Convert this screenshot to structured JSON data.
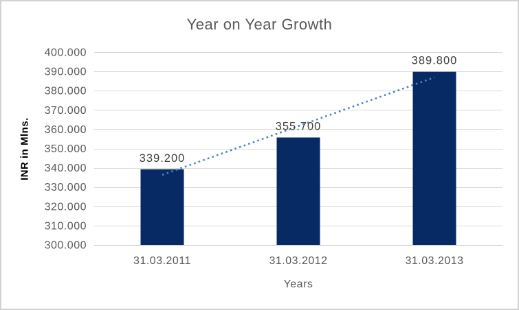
{
  "window": {
    "background": "#ffffff",
    "border_color": "#d2d2d2"
  },
  "chart_data": {
    "type": "bar",
    "title": "Year on Year Growth",
    "xlabel": "Years",
    "ylabel": "INR in Mlns.",
    "categories": [
      "31.03.2011",
      "31.03.2012",
      "31.03.2013"
    ],
    "values": [
      339.2,
      355.7,
      389.8
    ],
    "data_labels": [
      "339.200",
      "355.700",
      "389.800"
    ],
    "ylim": [
      300,
      400
    ],
    "ytick_step": 10,
    "ytick_labels": [
      "300.000",
      "310.000",
      "320.000",
      "330.000",
      "340.000",
      "350.000",
      "360.000",
      "370.000",
      "380.000",
      "390.000",
      "400.000"
    ],
    "grid": true,
    "legend": "none",
    "bar_color": "#072a64",
    "gridline_color": "#d9d9d9",
    "axis_line_color": "#bfbfbf",
    "tick_label_color": "#595959",
    "data_label_color": "#404040",
    "title_color": "#595959",
    "trendline": {
      "type": "linear",
      "style": "dotted",
      "color": "#4f81bd",
      "start_value": 336.3,
      "end_value": 386.9
    }
  }
}
